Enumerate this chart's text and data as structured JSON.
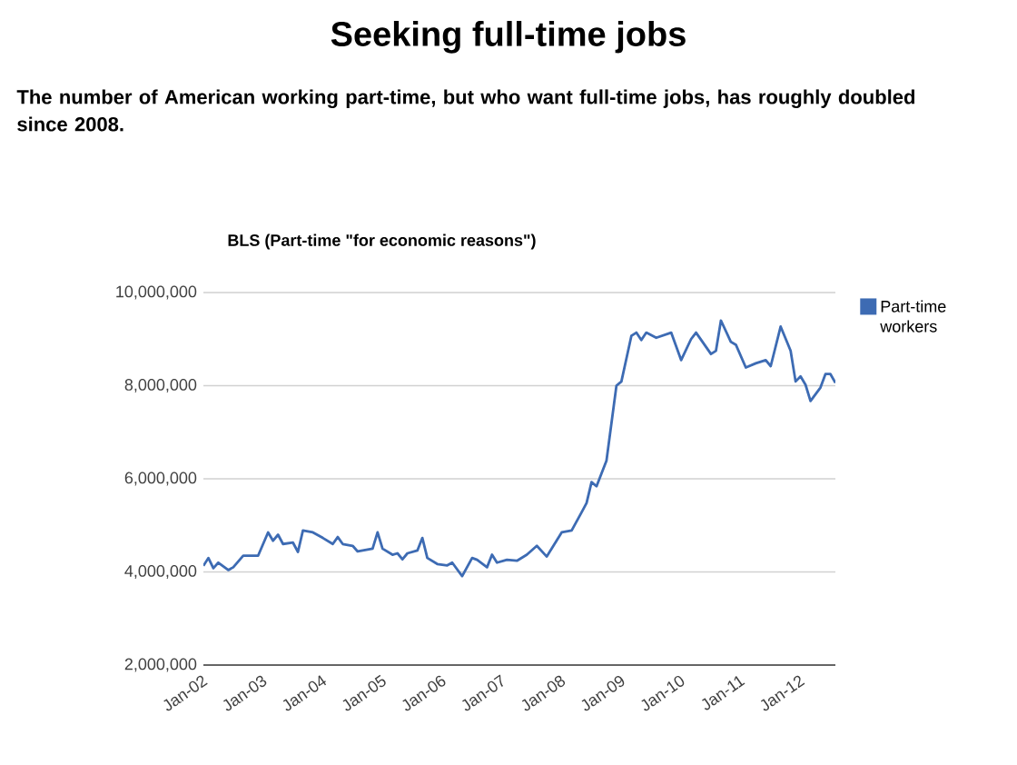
{
  "chart_data": {
    "type": "line",
    "title": "Seeking full-time jobs",
    "subtitle": "The number of American working part-time, but who want full-time jobs, has roughly doubled since 2008.",
    "annotations": [
      "BLS (Part-time \"for economic reasons\")"
    ],
    "x": [
      "2002-01",
      "2002-02",
      "2002-03",
      "2002-04",
      "2002-06",
      "2002-07",
      "2002-09",
      "2002-12",
      "2003-02",
      "2003-03",
      "2003-04",
      "2003-05",
      "2003-07",
      "2003-08",
      "2003-09",
      "2003-11",
      "2004-01",
      "2004-03",
      "2004-04",
      "2004-05",
      "2004-07",
      "2004-08",
      "2004-11",
      "2004-12",
      "2005-01",
      "2005-03",
      "2005-04",
      "2005-05",
      "2005-06",
      "2005-08",
      "2005-09",
      "2005-10",
      "2005-12",
      "2006-02",
      "2006-03",
      "2006-05",
      "2006-07",
      "2006-08",
      "2006-10",
      "2006-11",
      "2006-12",
      "2007-02",
      "2007-04",
      "2007-06",
      "2007-08",
      "2007-10",
      "2008-01",
      "2008-03",
      "2008-05",
      "2008-06",
      "2008-07",
      "2008-08",
      "2008-10",
      "2008-12",
      "2009-01",
      "2009-03",
      "2009-04",
      "2009-05",
      "2009-06",
      "2009-08",
      "2009-11",
      "2010-01",
      "2010-03",
      "2010-04",
      "2010-07",
      "2010-08",
      "2010-09",
      "2010-11",
      "2010-12",
      "2011-02",
      "2011-04",
      "2011-06",
      "2011-07",
      "2011-09",
      "2011-11",
      "2011-12",
      "2012-01",
      "2012-02",
      "2012-03",
      "2012-05",
      "2012-06",
      "2012-07",
      "2012-08"
    ],
    "series": [
      {
        "name": "Part-time workers",
        "color": "#3d6bb3",
        "values": [
          4130000,
          4300000,
          4080000,
          4200000,
          4040000,
          4100000,
          4350000,
          4350000,
          4850000,
          4670000,
          4800000,
          4600000,
          4630000,
          4430000,
          4890000,
          4850000,
          4730000,
          4600000,
          4750000,
          4600000,
          4560000,
          4440000,
          4500000,
          4850000,
          4500000,
          4370000,
          4400000,
          4270000,
          4400000,
          4460000,
          4730000,
          4300000,
          4170000,
          4140000,
          4200000,
          3910000,
          4300000,
          4260000,
          4100000,
          4370000,
          4200000,
          4260000,
          4240000,
          4370000,
          4560000,
          4330000,
          4850000,
          4890000,
          5280000,
          5480000,
          5930000,
          5840000,
          6390000,
          8000000,
          8090000,
          9070000,
          9140000,
          8980000,
          9140000,
          9030000,
          9140000,
          8550000,
          9000000,
          9140000,
          8680000,
          8750000,
          9400000,
          8940000,
          8880000,
          8390000,
          8480000,
          8550000,
          8420000,
          9270000,
          8750000,
          8090000,
          8200000,
          8020000,
          7670000,
          7960000,
          8250000,
          8250000,
          8060000
        ]
      }
    ],
    "xlim": [
      "2002-01",
      "2012-08"
    ],
    "xticks": [
      {
        "value": "2002-01",
        "label": "Jan-02"
      },
      {
        "value": "2003-01",
        "label": "Jan-03"
      },
      {
        "value": "2004-01",
        "label": "Jan-04"
      },
      {
        "value": "2005-01",
        "label": "Jan-05"
      },
      {
        "value": "2006-01",
        "label": "Jan-06"
      },
      {
        "value": "2007-01",
        "label": "Jan-07"
      },
      {
        "value": "2008-01",
        "label": "Jan-08"
      },
      {
        "value": "2009-01",
        "label": "Jan-09"
      },
      {
        "value": "2010-01",
        "label": "Jan-10"
      },
      {
        "value": "2011-01",
        "label": "Jan-11"
      },
      {
        "value": "2012-01",
        "label": "Jan-12"
      }
    ],
    "ylim": [
      2000000,
      10000000
    ],
    "yticks": [
      {
        "value": 2000000,
        "label": "2,000,000"
      },
      {
        "value": 4000000,
        "label": "4,000,000"
      },
      {
        "value": 6000000,
        "label": "6,000,000"
      },
      {
        "value": 8000000,
        "label": "8,000,000"
      },
      {
        "value": 10000000,
        "label": "10,000,000"
      }
    ],
    "grid": "y",
    "legend": "right",
    "line_style": "solid"
  }
}
